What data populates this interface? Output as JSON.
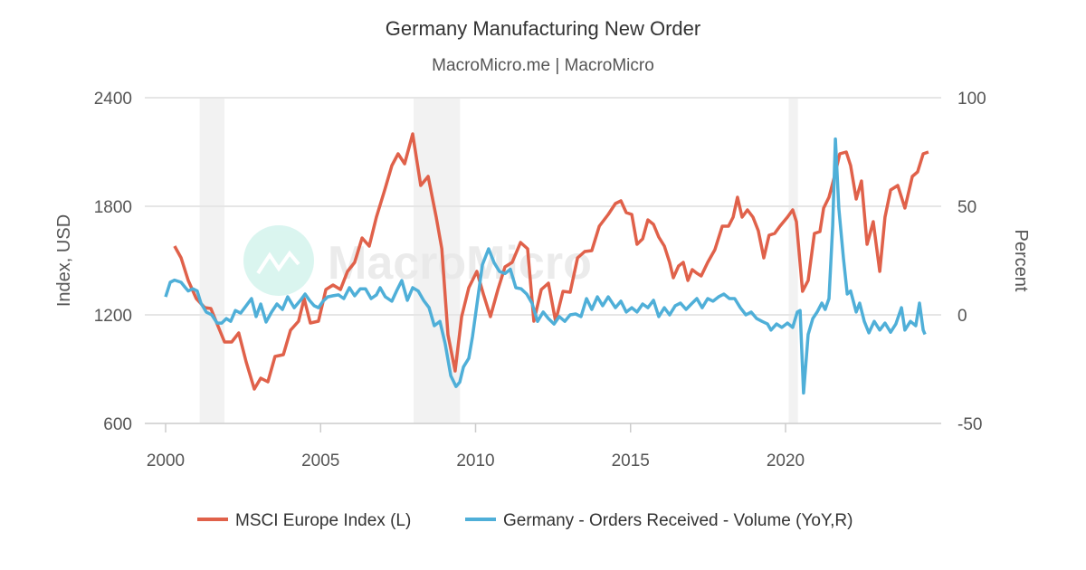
{
  "chart_data": {
    "type": "line",
    "title": "Germany Manufacturing New Order",
    "subtitle": "MacroMicro.me | MacroMicro",
    "watermark": "MacroMicro",
    "xlim": [
      2000,
      2024.7
    ],
    "x_ticks": [
      "2000",
      "2005",
      "2010",
      "2015",
      "2020"
    ],
    "y_left": {
      "label": "Index, USD",
      "lim": [
        600,
        2400
      ],
      "ticks": [
        "600",
        "1200",
        "1800",
        "2400"
      ]
    },
    "y_right": {
      "label": "Percent",
      "lim": [
        -50,
        100
      ],
      "ticks": [
        "-50",
        "0",
        "50",
        "100"
      ]
    },
    "grid": true,
    "legend_position": "bottom",
    "shaded_periods": [
      [
        2001.1,
        2001.9
      ],
      [
        2008.0,
        2009.5
      ],
      [
        2020.1,
        2020.4
      ]
    ],
    "colors": {
      "shade": "#f2f2f2",
      "grid": "#e6e6e6"
    },
    "series": [
      {
        "name": "MSCI Europe Index (L)",
        "axis": "left",
        "color": "#e0614a",
        "x": [
          2000.29,
          2000.5,
          2000.73,
          2000.99,
          2001.26,
          2001.46,
          2001.66,
          2001.9,
          2002.13,
          2002.36,
          2002.6,
          2002.86,
          2003.07,
          2003.3,
          2003.53,
          2003.8,
          2004.03,
          2004.29,
          2004.47,
          2004.67,
          2004.93,
          2005.17,
          2005.4,
          2005.64,
          2005.87,
          2006.1,
          2006.34,
          2006.57,
          2006.8,
          2007.07,
          2007.3,
          2007.5,
          2007.71,
          2007.97,
          2008.23,
          2008.47,
          2008.73,
          2008.91,
          2009.11,
          2009.34,
          2009.55,
          2009.78,
          2010.04,
          2010.25,
          2010.48,
          2010.72,
          2010.95,
          2011.18,
          2011.45,
          2011.68,
          2011.88,
          2012.12,
          2012.35,
          2012.58,
          2012.82,
          2013.05,
          2013.29,
          2013.52,
          2013.75,
          2013.99,
          2014.28,
          2014.51,
          2014.69,
          2014.86,
          2015.04,
          2015.21,
          2015.39,
          2015.56,
          2015.74,
          2015.91,
          2016.09,
          2016.26,
          2016.38,
          2016.55,
          2016.7,
          2016.85,
          2016.99,
          2017.14,
          2017.28,
          2017.49,
          2017.72,
          2017.96,
          2018.16,
          2018.31,
          2018.45,
          2018.6,
          2018.77,
          2018.95,
          2019.12,
          2019.3,
          2019.47,
          2019.65,
          2019.82,
          2020.06,
          2020.23,
          2020.35,
          2020.55,
          2020.73,
          2020.93,
          2021.11,
          2021.23,
          2021.4,
          2021.58,
          2021.75,
          2021.96,
          2022.1,
          2022.28,
          2022.45,
          2022.63,
          2022.83,
          2023.04,
          2023.21,
          2023.39,
          2023.62,
          2023.85,
          2024.09,
          2024.26,
          2024.44,
          2024.61
        ],
        "y": [
          1580,
          1515,
          1390,
          1290,
          1240,
          1235,
          1150,
          1050,
          1050,
          1100,
          940,
          790,
          850,
          830,
          970,
          980,
          1115,
          1165,
          1290,
          1155,
          1165,
          1340,
          1365,
          1340,
          1440,
          1490,
          1625,
          1580,
          1740,
          1890,
          2025,
          2090,
          2035,
          2200,
          1915,
          1965,
          1740,
          1565,
          1090,
          890,
          1190,
          1350,
          1440,
          1315,
          1190,
          1340,
          1465,
          1490,
          1600,
          1565,
          1165,
          1340,
          1375,
          1165,
          1330,
          1325,
          1515,
          1550,
          1555,
          1690,
          1755,
          1815,
          1830,
          1765,
          1755,
          1590,
          1620,
          1725,
          1700,
          1630,
          1580,
          1490,
          1405,
          1470,
          1490,
          1390,
          1450,
          1430,
          1415,
          1490,
          1560,
          1690,
          1690,
          1740,
          1850,
          1740,
          1780,
          1740,
          1665,
          1515,
          1640,
          1650,
          1690,
          1740,
          1780,
          1715,
          1330,
          1390,
          1650,
          1660,
          1790,
          1850,
          1965,
          2090,
          2100,
          2025,
          1840,
          1940,
          1590,
          1715,
          1440,
          1740,
          1890,
          1915,
          1790,
          1965,
          1990,
          2090,
          2100
        ]
      },
      {
        "name": "Germany - Orders Received - Volume (YoY,R)",
        "axis": "right",
        "color": "#4fafd8",
        "x": [
          2000.0,
          2000.15,
          2000.29,
          2000.5,
          2000.64,
          2000.73,
          2000.88,
          2001.02,
          2001.14,
          2001.31,
          2001.49,
          2001.66,
          2001.81,
          2001.96,
          2002.1,
          2002.25,
          2002.42,
          2002.6,
          2002.77,
          2002.92,
          2003.07,
          2003.24,
          2003.42,
          2003.59,
          2003.77,
          2003.94,
          2004.15,
          2004.35,
          2004.5,
          2004.64,
          2004.79,
          2004.93,
          2005.08,
          2005.23,
          2005.4,
          2005.58,
          2005.75,
          2005.93,
          2006.1,
          2006.28,
          2006.45,
          2006.63,
          2006.8,
          2006.92,
          2007.09,
          2007.3,
          2007.45,
          2007.62,
          2007.8,
          2007.97,
          2008.15,
          2008.32,
          2008.5,
          2008.67,
          2008.85,
          2009.02,
          2009.2,
          2009.37,
          2009.49,
          2009.61,
          2009.78,
          2009.9,
          2010.07,
          2010.22,
          2010.42,
          2010.6,
          2010.77,
          2010.95,
          2011.12,
          2011.3,
          2011.47,
          2011.65,
          2011.82,
          2012.0,
          2012.18,
          2012.35,
          2012.53,
          2012.7,
          2012.88,
          2013.05,
          2013.23,
          2013.4,
          2013.58,
          2013.75,
          2013.93,
          2014.1,
          2014.28,
          2014.51,
          2014.69,
          2014.86,
          2015.04,
          2015.21,
          2015.39,
          2015.56,
          2015.74,
          2015.91,
          2016.09,
          2016.26,
          2016.44,
          2016.61,
          2016.79,
          2016.96,
          2017.14,
          2017.31,
          2017.49,
          2017.66,
          2017.84,
          2018.01,
          2018.19,
          2018.36,
          2018.54,
          2018.72,
          2018.89,
          2019.07,
          2019.24,
          2019.42,
          2019.53,
          2019.71,
          2019.88,
          2020.06,
          2020.23,
          2020.38,
          2020.47,
          2020.58,
          2020.73,
          2020.88,
          2021.02,
          2021.17,
          2021.28,
          2021.4,
          2021.52,
          2021.61,
          2021.72,
          2021.87,
          2021.99,
          2022.1,
          2022.28,
          2022.39,
          2022.54,
          2022.69,
          2022.86,
          2023.04,
          2023.21,
          2023.39,
          2023.56,
          2023.74,
          2023.85,
          2024.03,
          2024.2,
          2024.32,
          2024.44,
          2024.5
        ],
        "y": [
          8.3,
          15,
          16,
          15,
          12.5,
          11,
          12,
          11,
          5.4,
          1.3,
          0,
          -3.8,
          -3.8,
          -1.7,
          -3,
          2,
          0.8,
          4.2,
          7.5,
          -0.8,
          5,
          -3.3,
          1.3,
          5,
          2.5,
          8.3,
          3.3,
          6.7,
          9.6,
          6.7,
          4.2,
          3.3,
          6.3,
          8.3,
          8.8,
          9.2,
          7.5,
          12.5,
          8.8,
          12,
          12,
          7.5,
          9.2,
          12.5,
          8.3,
          6.3,
          11,
          15.8,
          6.7,
          12.5,
          11,
          6.7,
          3.3,
          -5,
          -3,
          -13.3,
          -28,
          -33,
          -31,
          -24,
          -20,
          -10,
          7.5,
          23,
          30.4,
          24,
          20,
          19,
          21,
          12.5,
          12,
          9.6,
          5.4,
          -3,
          1.3,
          -1.7,
          -4.2,
          -0.8,
          -3,
          0,
          0.4,
          -0.8,
          7.5,
          2.5,
          8.3,
          4.2,
          8.3,
          3.3,
          6.3,
          1.3,
          3.3,
          1.3,
          5,
          3.3,
          6.7,
          -0.8,
          3.3,
          0,
          4.2,
          5.4,
          2.5,
          5,
          7.5,
          3.3,
          7.5,
          6.3,
          8.3,
          9.6,
          7.5,
          7.5,
          3.3,
          0,
          1.3,
          -1.7,
          -3,
          -4.2,
          -7,
          -4.2,
          -5.8,
          -3.8,
          -5.8,
          1.3,
          2,
          -36,
          -9,
          -1.7,
          1.3,
          5.4,
          2.5,
          7.5,
          41,
          81,
          49,
          26,
          9.6,
          11,
          1.3,
          5.4,
          -3,
          -8.3,
          -3,
          -7,
          -3.8,
          -8,
          -4.2,
          3.3,
          -7,
          -3,
          -5,
          5.4,
          -7,
          -9
        ]
      }
    ]
  }
}
